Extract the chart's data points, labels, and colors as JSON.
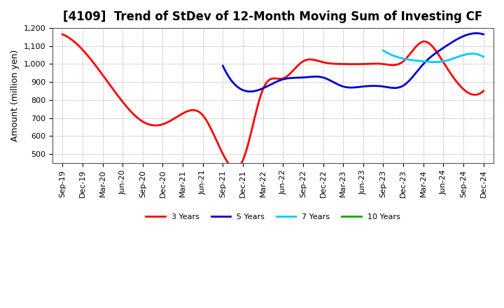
{
  "title": "[4109]  Trend of StDev of 12-Month Moving Sum of Investing CF",
  "ylabel": "Amount (million yen)",
  "ylim": [
    450,
    1200
  ],
  "yticks": [
    500,
    600,
    700,
    800,
    900,
    1000,
    1100,
    1200
  ],
  "background_color": "#ffffff",
  "grid_color": "#999999",
  "x_labels": [
    "Sep-19",
    "Dec-19",
    "Mar-20",
    "Jun-20",
    "Sep-20",
    "Dec-20",
    "Mar-21",
    "Jun-21",
    "Sep-21",
    "Dec-21",
    "Mar-22",
    "Jun-22",
    "Sep-22",
    "Dec-22",
    "Mar-23",
    "Jun-23",
    "Sep-23",
    "Dec-23",
    "Mar-24",
    "Jun-24",
    "Sep-24",
    "Dec-24"
  ],
  "series": {
    "3yr": {
      "color": "#ff0000",
      "label": "3 Years",
      "x": [
        0,
        1,
        2,
        3,
        4,
        5,
        6,
        7,
        8,
        9,
        10,
        11,
        12,
        13,
        14,
        15,
        16,
        17,
        18,
        19,
        20,
        21
      ],
      "y": [
        1165,
        1080,
        940,
        790,
        680,
        665,
        725,
        715,
        500,
        465,
        860,
        920,
        1015,
        1010,
        1000,
        1000,
        1000,
        1015,
        1125,
        1010,
        860,
        850
      ]
    },
    "5yr": {
      "color": "#0000cc",
      "label": "5 Years",
      "x": [
        8,
        9,
        10,
        11,
        12,
        13,
        14,
        15,
        16,
        17,
        18,
        19,
        20,
        21
      ],
      "y": [
        990,
        855,
        865,
        915,
        925,
        925,
        875,
        875,
        875,
        880,
        1000,
        1090,
        1155,
        1165
      ]
    },
    "7yr": {
      "color": "#00ccff",
      "label": "7 Years",
      "x": [
        16,
        17,
        18,
        19,
        20,
        21
      ],
      "y": [
        1075,
        1030,
        1015,
        1015,
        1050,
        1040
      ]
    },
    "10yr": {
      "color": "#00aa00",
      "label": "10 Years",
      "x": [],
      "y": []
    }
  },
  "title_fontsize": 12,
  "label_fontsize": 9,
  "tick_fontsize": 8,
  "line_width": 2.0
}
